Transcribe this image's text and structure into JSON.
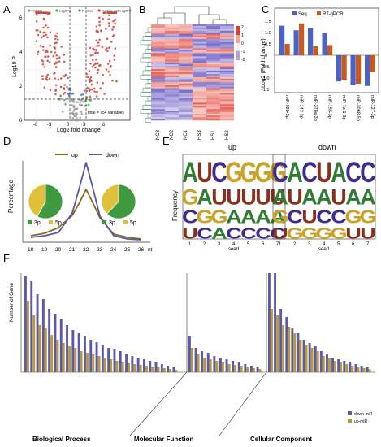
{
  "panels": {
    "A": "A",
    "B": "B",
    "C": "C",
    "D": "D",
    "E": "E",
    "F": "F"
  },
  "panelA": {
    "legend": [
      "Not Sig",
      "Log2FC",
      "P-value",
      "P-value and Log2FC"
    ],
    "legend_colors": [
      "#9a9a9a",
      "#4aa84a",
      "#5a7fd0",
      "#d0453a"
    ],
    "ylabel": "Log10 P",
    "xlabel": "Log2 fold change",
    "total_text": "total = 754 variables",
    "xticks": [
      "-6",
      "-3",
      "0",
      "3",
      "6"
    ],
    "yticks": [
      "0",
      "2",
      "4",
      "6"
    ]
  },
  "panelB": {
    "columns": [
      "NC3",
      "NC2",
      "NC1",
      "HS3",
      "HS1",
      "HS2"
    ],
    "scale": [
      "2",
      "1",
      "0",
      "-1",
      "-2"
    ]
  },
  "panelC": {
    "legend": [
      "Seq",
      "RT-qPCR"
    ],
    "colors": {
      "seq": "#4b63c9",
      "qpcr": "#c85a1e"
    },
    "ylabel": "Log2 (Fold change)",
    "yticks": [
      "1.5",
      "1.0",
      "0.5",
      "0",
      "-0.5",
      "-1.0",
      "-1.5"
    ],
    "categories": [
      "miR-92b-3p",
      "miR-143-3p",
      "miR-378a-3p",
      "miR-155-3p",
      "miR-7a-1-3p",
      "miR-3068-5p",
      "miR-127-3p"
    ]
  },
  "panelD": {
    "legend": [
      "up",
      "down"
    ],
    "colors": {
      "up": "#8a6a1a",
      "down": "#5858a8"
    },
    "ylabel": "Percentage",
    "xticks": [
      "18",
      "19",
      "20",
      "21",
      "22",
      "23",
      "24",
      "25",
      "26"
    ],
    "x_unit": "nt",
    "pie_legend": [
      "3p",
      "5p",
      "3p",
      "5p"
    ],
    "pie_colors": {
      "p3": "#3f9a3f",
      "p5": "#e0bf3a"
    }
  },
  "panelE": {
    "titles": [
      "up",
      "down"
    ],
    "ylabel": "Frequency",
    "xlabel": "seed",
    "seeds": [
      "1",
      "2",
      "3",
      "4",
      "5",
      "6",
      "7"
    ],
    "up_logo": [
      [
        "A",
        "G",
        "C",
        "U"
      ],
      [
        "U",
        "A",
        "G",
        "C"
      ],
      [
        "C",
        "U",
        "G",
        "A"
      ],
      [
        "G",
        "U",
        "A",
        "C"
      ],
      [
        "G",
        "U",
        "A",
        "C"
      ],
      [
        "G",
        "U",
        "A",
        "C"
      ],
      [
        "G",
        "U",
        "A",
        "C"
      ]
    ],
    "down_logo": [
      [
        "C",
        "A",
        "G",
        "U"
      ],
      [
        "A",
        "U",
        "C",
        "G"
      ],
      [
        "C",
        "A",
        "U",
        "G"
      ],
      [
        "U",
        "A",
        "C",
        "G"
      ],
      [
        "A",
        "U",
        "C",
        "G"
      ],
      [
        "C",
        "A",
        "G",
        "U"
      ],
      [
        "C",
        "A",
        "G",
        "U"
      ]
    ]
  },
  "panelF": {
    "ylabel": "Number of Gene",
    "legend": [
      "down-miR",
      "up-miR"
    ],
    "colors": {
      "down": "#5a5aa8",
      "up": "#b99a3a"
    },
    "sections": [
      "Biological Process",
      "Molecular Function",
      "Cellular Component"
    ]
  }
}
